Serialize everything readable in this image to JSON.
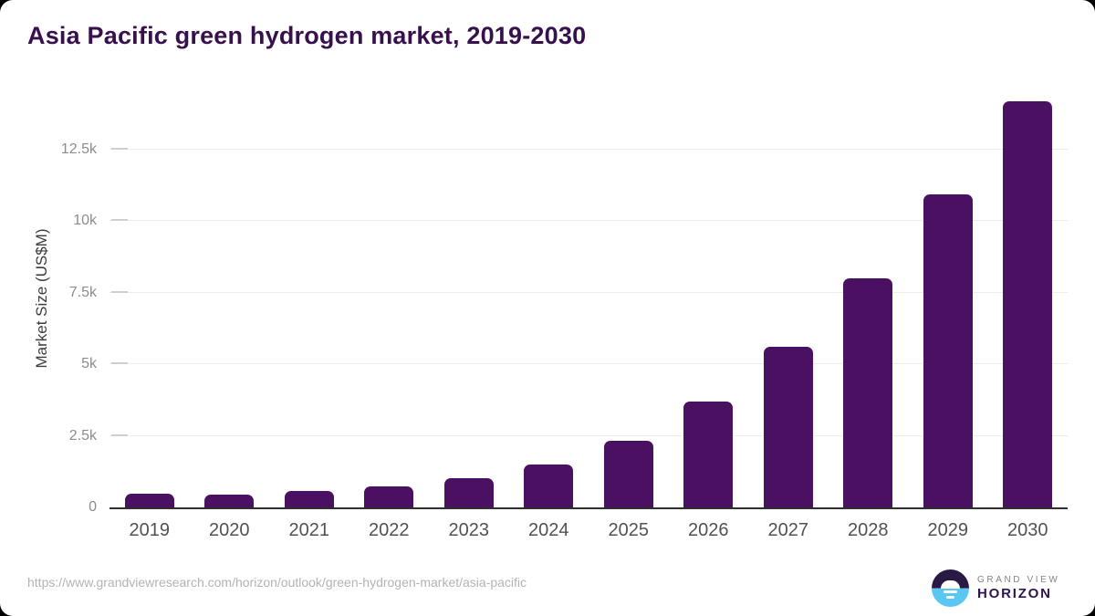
{
  "page": {
    "source_url": "https://www.grandviewresearch.com/horizon/outlook/green-hydrogen-market/asia-pacific"
  },
  "logo": {
    "name": "grand-view-horizon",
    "top_text": "GRAND VIEW",
    "bottom_text": "HORIZON",
    "circle_top_color": "#281a45",
    "circle_bottom_color": "#5bc6f0"
  },
  "colors": {
    "bar": "#4a1162",
    "title_text": "#38104e",
    "axis_line": "#2f2f2f",
    "grid_line": "#ededed",
    "y_tick_text": "#8c8c8c",
    "x_tick_text": "#515156",
    "url_text": "#b3b3b3",
    "background": "#ffffff"
  },
  "chart_data": {
    "type": "bar",
    "title": "Asia Pacific green hydrogen market, 2019-2030",
    "xlabel": "",
    "ylabel": "Market Size (US$M)",
    "categories": [
      "2019",
      "2020",
      "2021",
      "2022",
      "2023",
      "2024",
      "2025",
      "2026",
      "2027",
      "2028",
      "2029",
      "2030"
    ],
    "values": [
      490,
      450,
      580,
      740,
      1030,
      1490,
      2340,
      3700,
      5620,
      8000,
      10950,
      14200
    ],
    "ylim": [
      0,
      14670
    ],
    "y_ticks": [
      {
        "value": 0,
        "label": "0"
      },
      {
        "value": 2500,
        "label": "2.5k"
      },
      {
        "value": 5000,
        "label": "5k"
      },
      {
        "value": 7500,
        "label": "7.5k"
      },
      {
        "value": 10000,
        "label": "10k"
      },
      {
        "value": 12500,
        "label": "12.5k"
      }
    ],
    "grid": true,
    "legend": false
  }
}
